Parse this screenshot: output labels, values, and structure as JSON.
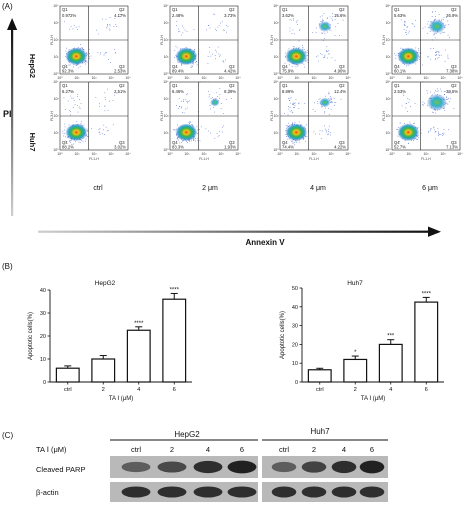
{
  "panel_a": {
    "label": "(A)",
    "y_axis_label": "PI",
    "x_axis_label": "Annexin V",
    "row_labels": [
      "HepG2",
      "Huh7"
    ],
    "column_labels": [
      "ctrl",
      "2 μm",
      "4 μm",
      "6 μm"
    ],
    "axis_ticks": [
      "10⁰",
      "10¹",
      "10²",
      "10³",
      "10⁴"
    ],
    "fl_x_label": "FL1-H",
    "fl_y_label": "FL3-H",
    "quadrant_names": [
      "Q1",
      "Q2",
      "Q3",
      "Q4"
    ],
    "plots": [
      [
        {
          "q1": "0.972%",
          "q2": "4.17%",
          "q3": "2.53%",
          "q4": "92.3%"
        },
        {
          "q1": "2.48%",
          "q2": "3.73%",
          "q3": "4.42%",
          "q4": "89.4%"
        },
        {
          "q1": "3.62%",
          "q2": "15.6%",
          "q3": "4.90%",
          "q4": "75.9%"
        },
        {
          "q1": "5.63%",
          "q2": "26.9%",
          "q3": "7.38%",
          "q4": "60.1%"
        }
      ],
      [
        {
          "q1": "6.27%",
          "q2": "2.51%",
          "q3": "3.02%",
          "q4": "88.2%"
        },
        {
          "q1": "6.46%",
          "q2": "8.39%",
          "q3": "1.93%",
          "q4": "83.3%"
        },
        {
          "q1": "8.89%",
          "q2": "12.4%",
          "q3": "4.22%",
          "q4": "74.4%"
        },
        {
          "q1": "2.53%",
          "q2": "39.5%",
          "q3": "7.13%",
          "q4": "52.7%"
        }
      ]
    ]
  },
  "panel_b": {
    "label": "(B)",
    "chart_data": [
      {
        "type": "bar",
        "title": "HepG2",
        "categories": [
          "ctrl",
          "2",
          "4",
          "6"
        ],
        "values": [
          6,
          10,
          22.5,
          36
        ],
        "errors": [
          1,
          1.5,
          1.5,
          2.5
        ],
        "significance": [
          "",
          "",
          "****",
          "****"
        ],
        "xlabel": "TA Ⅰ (μM)",
        "ylabel": "Apoptotic cells(%)",
        "ylim": [
          0,
          40
        ],
        "yticks": [
          0,
          10,
          20,
          30,
          40
        ]
      },
      {
        "type": "bar",
        "title": "Huh7",
        "categories": [
          "ctrl",
          "2",
          "4",
          "6"
        ],
        "values": [
          6.5,
          12,
          20,
          42.5
        ],
        "errors": [
          0.8,
          1.8,
          2.5,
          2.5
        ],
        "significance": [
          "",
          "*",
          "***",
          "****"
        ],
        "xlabel": "TA Ⅰ (μM)",
        "ylabel": "Apoptotic cells(%)",
        "ylim": [
          0,
          50
        ],
        "yticks": [
          0,
          10,
          20,
          30,
          40,
          50
        ]
      }
    ]
  },
  "panel_c": {
    "label": "(C)",
    "treatment_label": "TA Ⅰ (μM)",
    "cell_lines": [
      "HepG2",
      "Huh7"
    ],
    "lanes": [
      "ctrl",
      "2",
      "4",
      "6"
    ],
    "rows": [
      "Cleaved PARP",
      "β-actin"
    ],
    "band_intensity": {
      "HepG2": {
        "Cleaved PARP": [
          0.45,
          0.6,
          0.8,
          0.9
        ],
        "β-actin": [
          0.8,
          0.8,
          0.8,
          0.8
        ]
      },
      "Huh7": {
        "Cleaved PARP": [
          0.45,
          0.65,
          0.8,
          0.9
        ],
        "β-actin": [
          0.8,
          0.8,
          0.8,
          0.8
        ]
      }
    }
  }
}
